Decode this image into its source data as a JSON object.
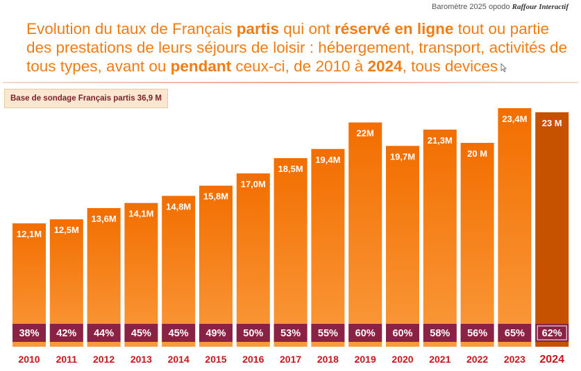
{
  "source": {
    "text": "Baromètre 2025 opodo",
    "brand": "Raffour Interactif"
  },
  "title": {
    "parts": [
      {
        "text": "Evolution du taux de Français ",
        "bold": false
      },
      {
        "text": "partis",
        "bold": true
      },
      {
        "text": " qui ont ",
        "bold": false
      },
      {
        "text": "réservé en ligne",
        "bold": true
      },
      {
        "text": " tout ou partie des prestations de leurs séjours de loisir : hébergement, transport, activités de tous types, avant ou ",
        "bold": false
      },
      {
        "text": "pendant",
        "bold": true
      },
      {
        "text": " ceux-ci, de 2010 à ",
        "bold": false
      },
      {
        "text": "2024",
        "bold": true
      },
      {
        "text": ", tous devices",
        "bold": false
      }
    ]
  },
  "base_label": "Base de sondage Français partis 36,9 M",
  "colors": {
    "bar": "#f47c0c",
    "bar_highlight": "#c65200",
    "bar_gradient_top": "#f26e00",
    "bar_gradient_bottom": "#fa9a3c",
    "percent_band": "#8a2245",
    "year_text": "#c8141f",
    "value_text": "#ffffff"
  },
  "chart_data": {
    "type": "bar",
    "categories": [
      "2010",
      "2011",
      "2012",
      "2013",
      "2014",
      "2015",
      "2016",
      "2017",
      "2018",
      "2019",
      "2020",
      "2021",
      "2022",
      "2023",
      "2024"
    ],
    "values": [
      12.1,
      12.5,
      13.6,
      14.1,
      14.8,
      15.8,
      17.0,
      18.5,
      19.4,
      22.0,
      19.7,
      21.3,
      20.0,
      23.4,
      23.0
    ],
    "value_labels": [
      "12,1M",
      "12,5M",
      "13,6M",
      "14,1M",
      "14,8M",
      "15,8M",
      "17,0M",
      "18,5M",
      "19,4M",
      "22M",
      "19,7M",
      "21,3M",
      "20 M",
      "23,4M",
      "23 M"
    ],
    "percent_labels": [
      "38%",
      "42%",
      "44%",
      "45%",
      "45%",
      "49%",
      "50%",
      "53%",
      "55%",
      "60%",
      "60%",
      "58%",
      "56%",
      "65%",
      "62%"
    ],
    "highlight_category": "2024",
    "title": "",
    "xlabel": "",
    "ylabel": "",
    "ylim": [
      0,
      23.4
    ],
    "grid": false,
    "legend": "none"
  }
}
